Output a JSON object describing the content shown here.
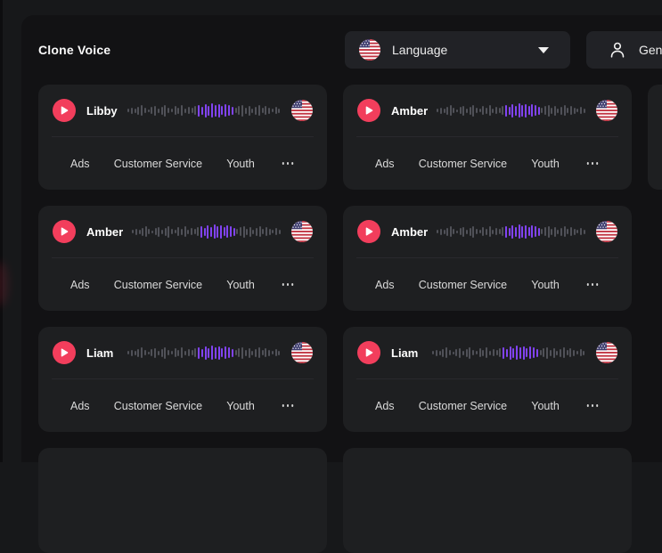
{
  "header": {
    "title": "Clone Voice",
    "language_filter": {
      "label": "Language",
      "icon": "us-flag-icon",
      "caret": "chevron-down-icon"
    },
    "gender_filter": {
      "label": "Gender",
      "icon": "person-icon"
    }
  },
  "colors": {
    "page_background": "#17181a",
    "panel_background": "#121214",
    "card_background": "#1e1f21",
    "filter_background": "#212226",
    "accent_play": "#f23e5c",
    "waveform_gray": "#505158",
    "waveform_purple": "#8143f2"
  },
  "waveform": {
    "bar_count": 46,
    "purple_start": 21,
    "purple_end": 31,
    "heights": [
      4,
      7,
      5,
      9,
      12,
      6,
      3,
      8,
      11,
      5,
      9,
      13,
      6,
      4,
      10,
      7,
      12,
      5,
      8,
      6,
      10,
      13,
      9,
      15,
      11,
      16,
      13,
      15,
      10,
      14,
      12,
      9,
      6,
      10,
      13,
      7,
      11,
      5,
      9,
      12,
      6,
      10,
      7,
      4,
      8,
      5
    ]
  },
  "cards": [
    {
      "row": 1,
      "col": 1,
      "name": "Libby",
      "flag": "us-flag-icon",
      "tags": [
        "Ads",
        "Customer Service",
        "Youth"
      ]
    },
    {
      "row": 1,
      "col": 2,
      "name": "Amber",
      "flag": "us-flag-icon",
      "tags": [
        "Ads",
        "Customer Service",
        "Youth"
      ]
    },
    {
      "row": 1,
      "col": 3,
      "placeholder": true
    },
    {
      "row": 2,
      "col": 1,
      "name": "Amber",
      "flag": "us-flag-icon",
      "tags": [
        "Ads",
        "Customer Service",
        "Youth"
      ]
    },
    {
      "row": 2,
      "col": 2,
      "name": "Amber",
      "flag": "us-flag-icon",
      "tags": [
        "Ads",
        "Customer Service",
        "Youth"
      ]
    },
    {
      "row": 3,
      "col": 1,
      "name": "Liam",
      "flag": "us-flag-icon",
      "tags": [
        "Ads",
        "Customer Service",
        "Youth"
      ]
    },
    {
      "row": 3,
      "col": 2,
      "name": "Liam",
      "flag": "us-flag-icon",
      "tags": [
        "Ads",
        "Customer Service",
        "Youth"
      ]
    },
    {
      "row": 4,
      "col": 1,
      "placeholder": true
    },
    {
      "row": 4,
      "col": 2,
      "placeholder": true
    }
  ]
}
